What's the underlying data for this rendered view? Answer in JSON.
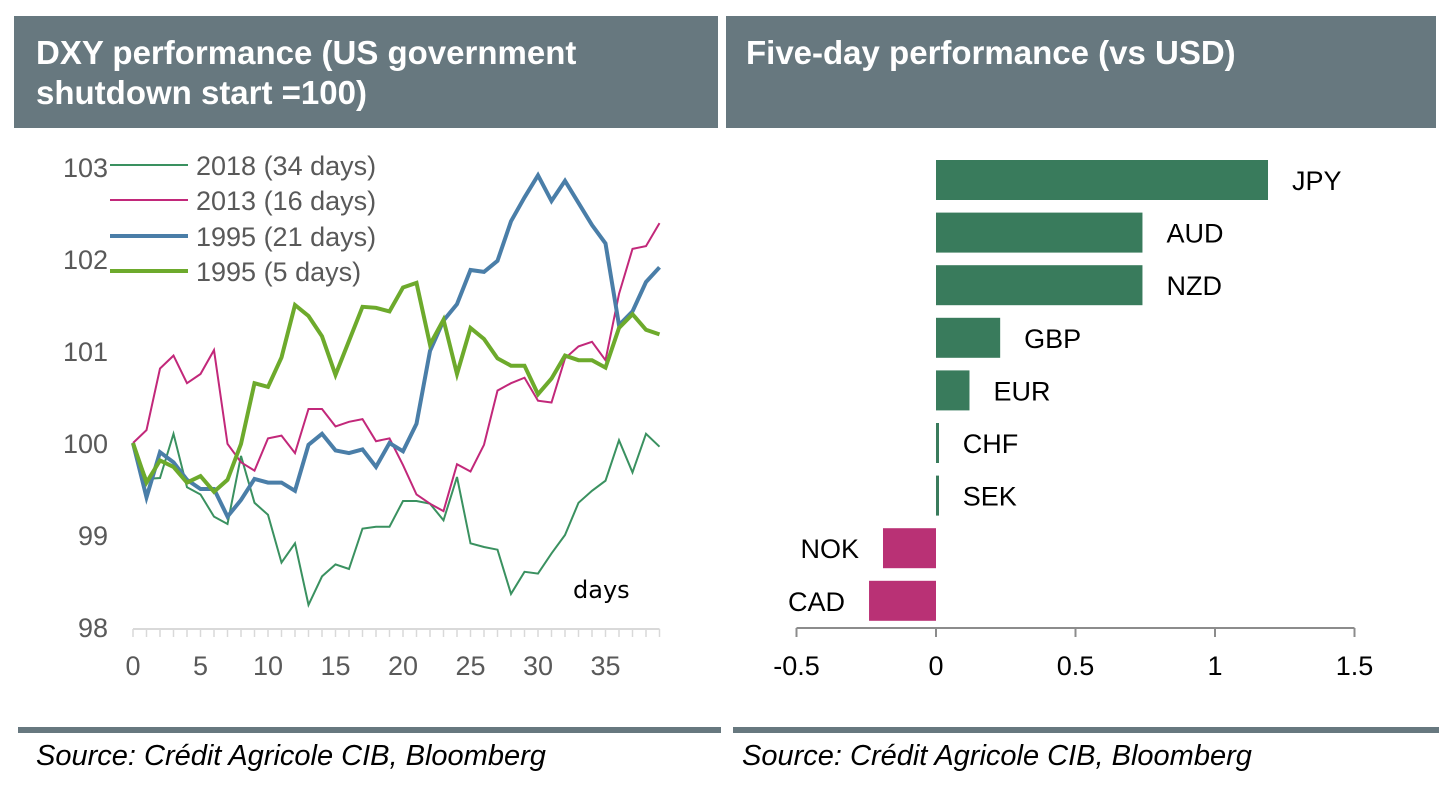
{
  "panels": {
    "left": {
      "title_line1": "DXY performance (US government",
      "title_line2": "shutdown start =100)",
      "source": "Source: Crédit Agricole CIB, Bloomberg"
    },
    "right": {
      "title": "Five-day performance (vs USD)",
      "source": "Source: Crédit Agricole CIB, Bloomberg"
    }
  },
  "chart_data": [
    {
      "type": "line",
      "title": "DXY performance (US government shutdown start =100)",
      "xlabel": "days",
      "ylabel": "",
      "xlim": [
        0,
        39
      ],
      "ylim": [
        98,
        103
      ],
      "xticks": [
        0,
        5,
        10,
        15,
        20,
        25,
        30,
        35
      ],
      "yticks": [
        98,
        99,
        100,
        101,
        102,
        103
      ],
      "grid": false,
      "legend": "top-left",
      "annotation": "days",
      "x": [
        0,
        1,
        2,
        3,
        4,
        5,
        6,
        7,
        8,
        9,
        10,
        11,
        12,
        13,
        14,
        15,
        16,
        17,
        18,
        19,
        20,
        21,
        22,
        23,
        24,
        25,
        26,
        27,
        28,
        29,
        30,
        31,
        32,
        33,
        34,
        35,
        36,
        37,
        38,
        39
      ],
      "series": [
        {
          "name": "2018 (34 days)",
          "color": "#3a9160",
          "weight": "thin",
          "values": [
            100.0,
            99.61,
            99.62,
            100.1,
            99.52,
            99.44,
            99.2,
            99.12,
            99.86,
            99.35,
            99.22,
            98.7,
            98.91,
            98.24,
            98.55,
            98.68,
            98.63,
            99.07,
            99.09,
            99.09,
            99.37,
            99.37,
            99.34,
            99.16,
            99.63,
            98.91,
            98.87,
            98.84,
            98.36,
            98.6,
            98.58,
            98.8,
            99.0,
            99.35,
            99.48,
            99.59,
            100.03,
            99.68,
            100.1,
            99.96
          ]
        },
        {
          "name": "2013 (16 days)",
          "color": "#c2287a",
          "weight": "thin",
          "values": [
            100.0,
            100.14,
            100.81,
            100.95,
            100.65,
            100.75,
            101.01,
            99.99,
            99.79,
            99.7,
            100.05,
            100.08,
            99.89,
            100.37,
            100.37,
            100.18,
            100.23,
            100.26,
            100.02,
            100.05,
            99.76,
            99.44,
            99.34,
            99.26,
            99.77,
            99.69,
            99.98,
            100.57,
            100.65,
            100.71,
            100.46,
            100.44,
            100.92,
            101.05,
            101.1,
            100.9,
            101.62,
            102.11,
            102.14,
            102.39
          ]
        },
        {
          "name": "1995 (21 days)",
          "color": "#4a7ea8",
          "weight": "thick",
          "values": [
            100.0,
            99.41,
            99.9,
            99.79,
            99.6,
            99.5,
            99.5,
            99.2,
            99.38,
            99.61,
            99.57,
            99.57,
            99.48,
            99.98,
            100.1,
            99.92,
            99.89,
            99.93,
            99.74,
            100.0,
            99.91,
            100.21,
            101.0,
            101.33,
            101.51,
            101.88,
            101.86,
            101.98,
            102.41,
            102.67,
            102.91,
            102.63,
            102.85,
            102.61,
            102.37,
            102.17,
            101.28,
            101.43,
            101.75,
            101.91
          ]
        },
        {
          "name": "1995 (5 days)",
          "color": "#6daa2c",
          "weight": "thick",
          "values": [
            100.0,
            99.57,
            99.81,
            99.74,
            99.57,
            99.64,
            99.47,
            99.6,
            99.99,
            100.65,
            100.61,
            100.93,
            101.5,
            101.38,
            101.16,
            100.74,
            101.11,
            101.48,
            101.47,
            101.43,
            101.69,
            101.74,
            101.07,
            101.34,
            100.75,
            101.25,
            101.13,
            100.92,
            100.84,
            100.84,
            100.53,
            100.7,
            100.95,
            100.9,
            100.9,
            100.82,
            101.25,
            101.4,
            101.23,
            101.18
          ]
        }
      ]
    },
    {
      "type": "bar",
      "orientation": "horizontal",
      "title": "Five-day performance (vs USD)",
      "xlabel": "",
      "ylabel": "",
      "xlim": [
        -0.5,
        1.5
      ],
      "xticks": [
        -0.5,
        0,
        0.5,
        1,
        1.5
      ],
      "xtick_labels": [
        "-0.5",
        "0",
        "0.5",
        "1",
        "1.5"
      ],
      "grid": false,
      "positive_color": "#397b5c",
      "negative_color": "#b93175",
      "categories": [
        "JPY",
        "AUD",
        "NZD",
        "GBP",
        "EUR",
        "CHF",
        "SEK",
        "NOK",
        "CAD"
      ],
      "values": [
        1.19,
        0.74,
        0.74,
        0.23,
        0.12,
        0.01,
        0.01,
        -0.19,
        -0.24
      ]
    }
  ]
}
